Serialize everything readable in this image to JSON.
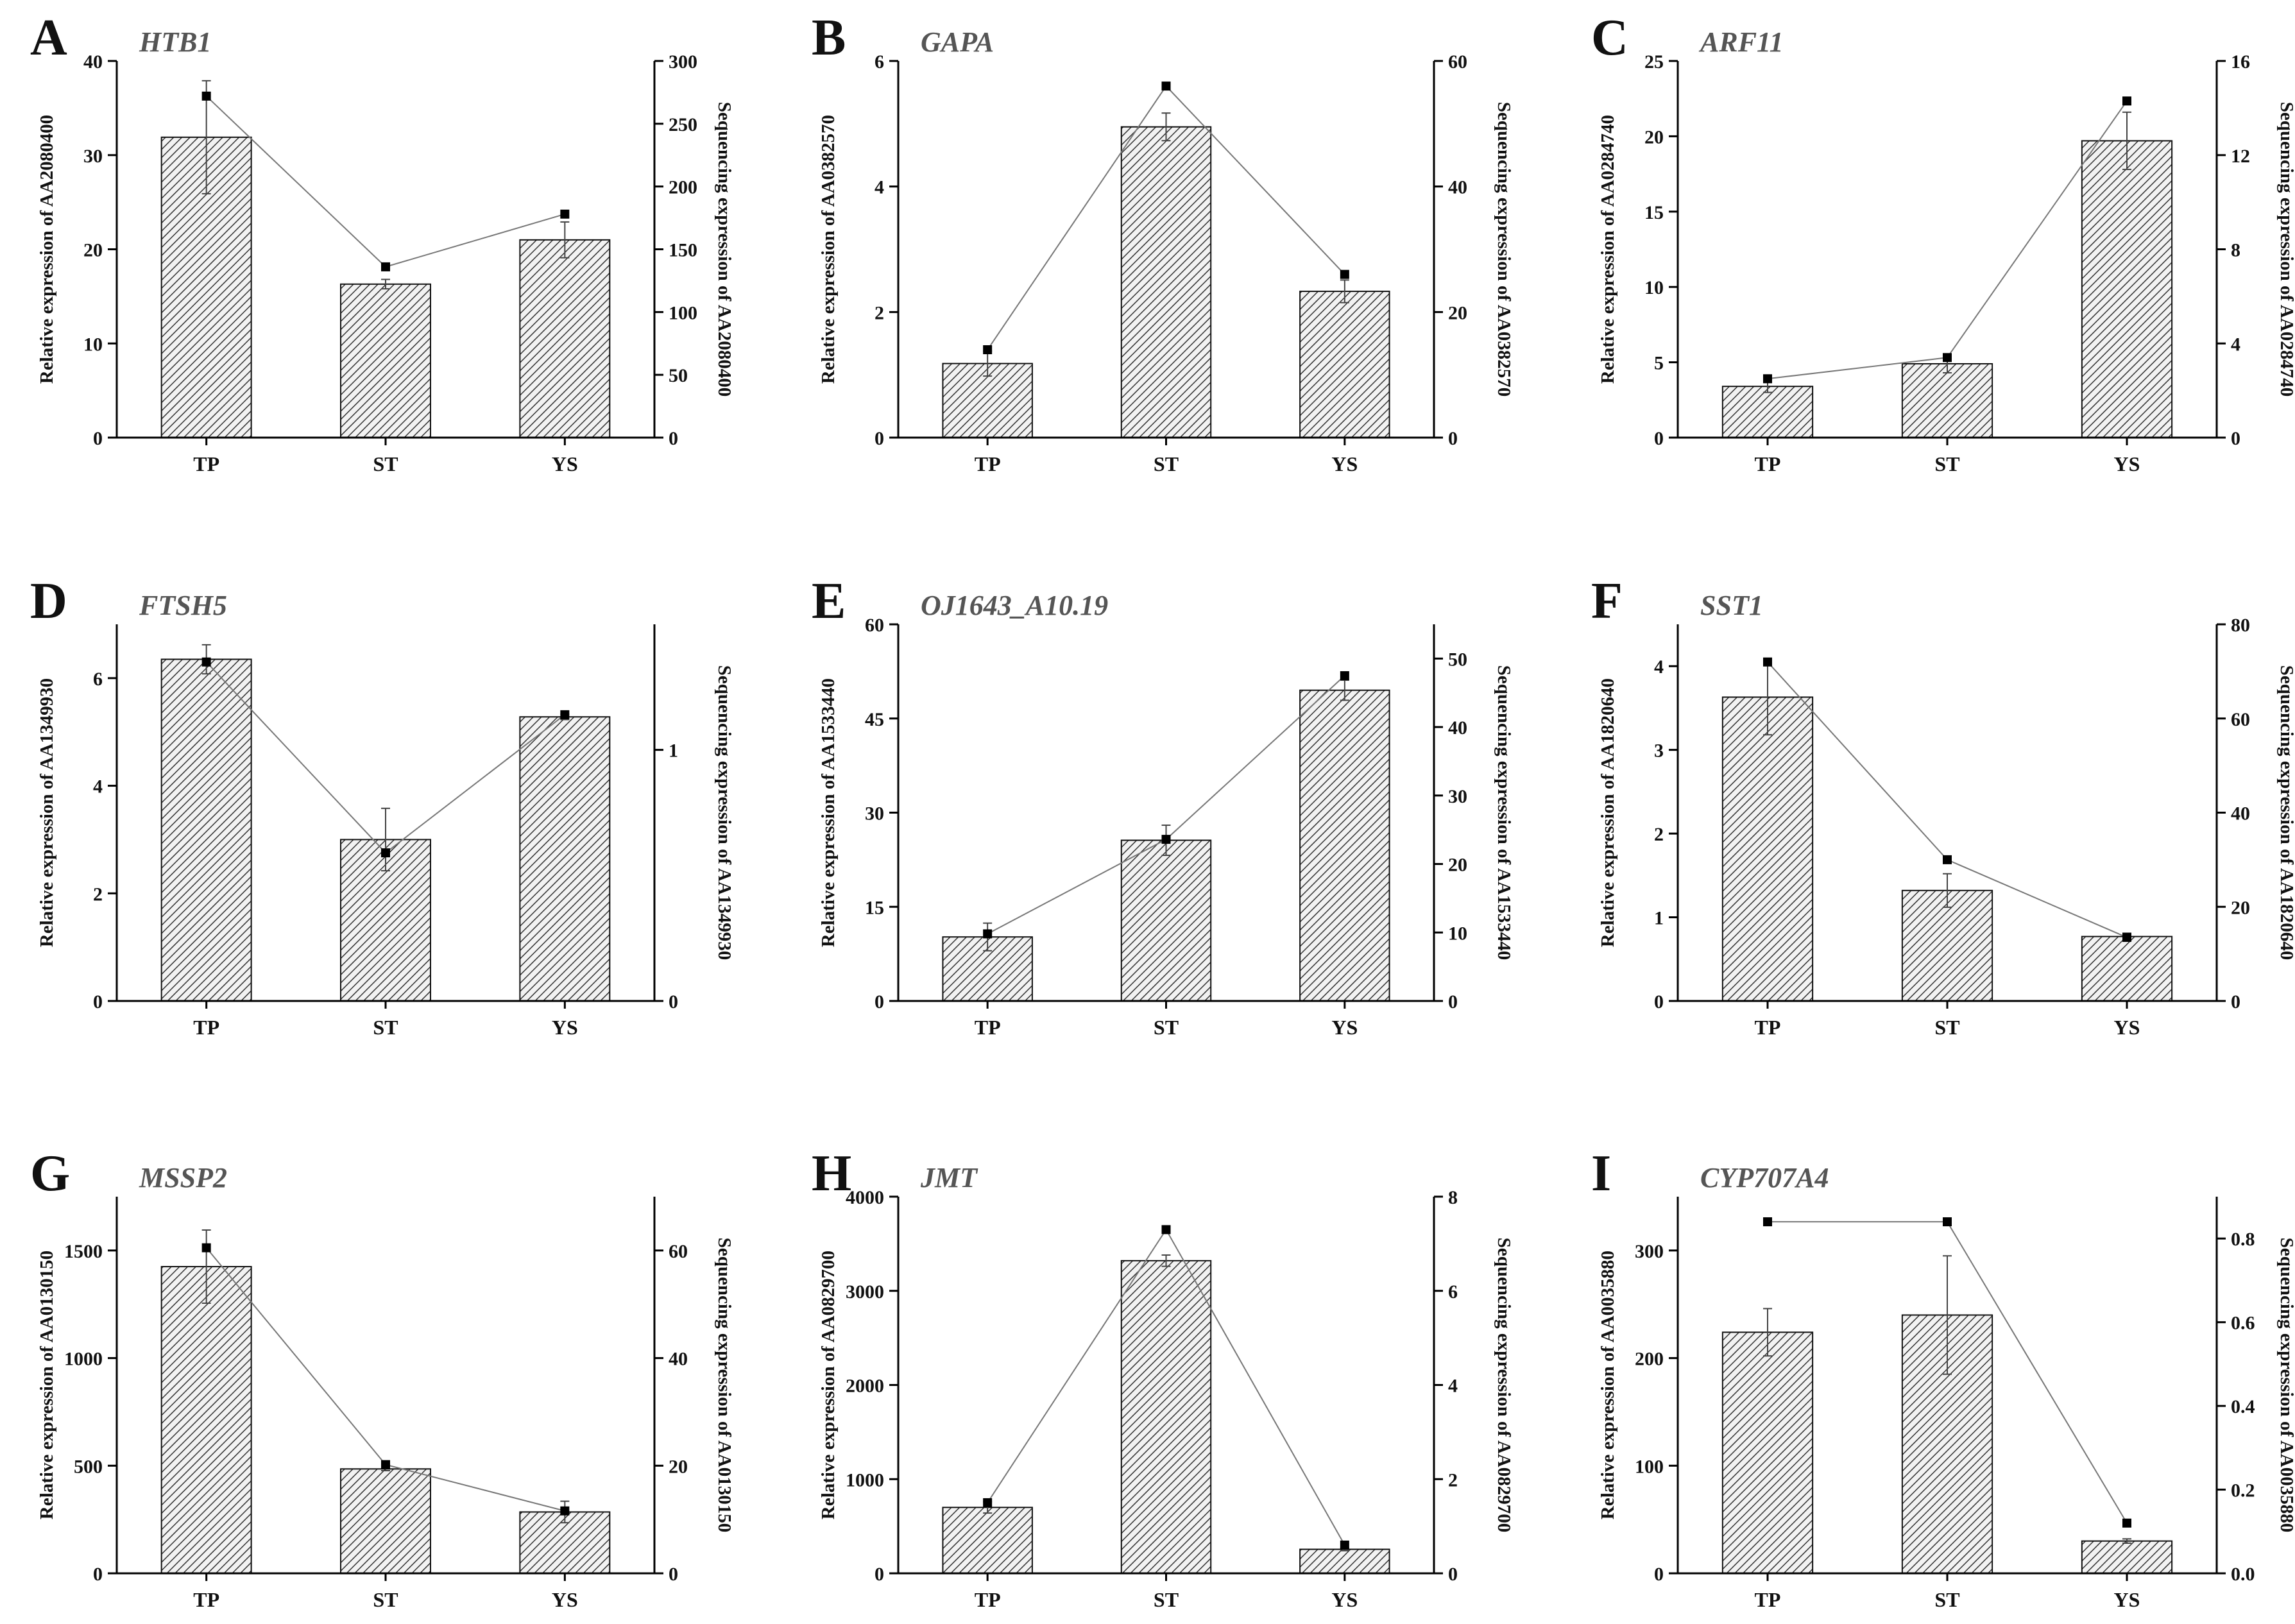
{
  "chart_data": [
    {
      "panel": "A",
      "gene": "HTB1",
      "type": "bar+line",
      "categories": [
        "TP",
        "ST",
        "YS"
      ],
      "left_axis": {
        "label": "Relative expression of AA2080400",
        "ylim": [
          0,
          40
        ],
        "ticks": [
          0,
          10,
          20,
          30,
          40
        ]
      },
      "right_axis": {
        "label": "Sequencing expression of AA2080400",
        "ylim": [
          0,
          300
        ],
        "ticks": [
          0,
          50,
          100,
          150,
          200,
          250,
          300
        ]
      },
      "series": [
        {
          "name": "Relative expression",
          "type": "bar",
          "axis": "left",
          "values": [
            31.9,
            16.3,
            21.0
          ],
          "errors": [
            6.0,
            0.5,
            1.9
          ]
        },
        {
          "name": "Sequencing expression",
          "type": "line",
          "axis": "right",
          "values": [
            272,
            136,
            178
          ]
        }
      ]
    },
    {
      "panel": "B",
      "gene": "GAPA",
      "type": "bar+line",
      "categories": [
        "TP",
        "ST",
        "YS"
      ],
      "left_axis": {
        "label": "Relative expression of AA0382570",
        "ylim": [
          0,
          6
        ],
        "ticks": [
          0,
          2,
          4,
          6
        ]
      },
      "right_axis": {
        "label": "Sequencing expression of AA0382570",
        "ylim": [
          0,
          60
        ],
        "ticks": [
          0,
          20,
          40,
          60
        ]
      },
      "series": [
        {
          "name": "Relative expression",
          "type": "bar",
          "axis": "left",
          "values": [
            1.18,
            4.95,
            2.33
          ],
          "errors": [
            0.2,
            0.22,
            0.18
          ]
        },
        {
          "name": "Sequencing expression",
          "type": "line",
          "axis": "right",
          "values": [
            14,
            56,
            26
          ]
        }
      ]
    },
    {
      "panel": "C",
      "gene": "ARF11",
      "type": "bar+line",
      "categories": [
        "TP",
        "ST",
        "YS"
      ],
      "left_axis": {
        "label": "Relative expression of AA0284740",
        "ylim": [
          0,
          25
        ],
        "ticks": [
          0,
          5,
          10,
          15,
          20,
          25
        ]
      },
      "right_axis": {
        "label": "Sequencing expression of AA0284740",
        "ylim": [
          0,
          16
        ],
        "ticks": [
          0,
          4,
          8,
          12,
          16
        ]
      },
      "series": [
        {
          "name": "Relative expression",
          "type": "bar",
          "axis": "left",
          "values": [
            3.4,
            4.9,
            19.7
          ],
          "errors": [
            0.4,
            0.6,
            1.9
          ]
        },
        {
          "name": "Sequencing expression",
          "type": "line",
          "axis": "right",
          "values": [
            2.5,
            3.4,
            14.3
          ]
        }
      ]
    },
    {
      "panel": "D",
      "gene": "FTSH5",
      "type": "bar+line",
      "categories": [
        "TP",
        "ST",
        "YS"
      ],
      "left_axis": {
        "label": "Relative expression of AA1349930",
        "ylim": [
          0,
          7
        ],
        "ticks": [
          0,
          2,
          4,
          6
        ]
      },
      "right_axis": {
        "label": "Sequencing expression of AA1349930",
        "ylim": [
          0,
          1.5
        ],
        "ticks": [
          0,
          1
        ]
      },
      "series": [
        {
          "name": "Relative expression",
          "type": "bar",
          "axis": "left",
          "values": [
            6.35,
            3.0,
            5.28
          ],
          "errors": [
            0.27,
            0.58,
            0.05
          ]
        },
        {
          "name": "Sequencing expression",
          "type": "line",
          "axis": "right",
          "values": [
            1.35,
            0.59,
            1.14
          ]
        }
      ]
    },
    {
      "panel": "E",
      "gene": "OJ1643_A10.19",
      "type": "bar+line",
      "categories": [
        "TP",
        "ST",
        "YS"
      ],
      "left_axis": {
        "label": "Relative expression of AA1533440",
        "ylim": [
          0,
          60
        ],
        "ticks": [
          0,
          15,
          30,
          45,
          60
        ]
      },
      "right_axis": {
        "label": "Sequencing expression of AA1533440",
        "ylim": [
          0,
          55
        ],
        "ticks": [
          0,
          10,
          20,
          30,
          40,
          50
        ]
      },
      "series": [
        {
          "name": "Relative expression",
          "type": "bar",
          "axis": "left",
          "values": [
            10.2,
            25.6,
            49.5
          ],
          "errors": [
            2.2,
            2.4,
            1.6
          ]
        },
        {
          "name": "Sequencing expression",
          "type": "line",
          "axis": "right",
          "values": [
            9.8,
            23.6,
            47.5
          ]
        }
      ]
    },
    {
      "panel": "F",
      "gene": "SST1",
      "type": "bar+line",
      "categories": [
        "TP",
        "ST",
        "YS"
      ],
      "left_axis": {
        "label": "Relative expression of AA1820640",
        "ylim": [
          0,
          4.5
        ],
        "ticks": [
          0,
          1,
          2,
          3,
          4
        ]
      },
      "right_axis": {
        "label": "Sequencing expression of AA1820640",
        "ylim": [
          0,
          80
        ],
        "ticks": [
          0,
          20,
          40,
          60,
          80
        ]
      },
      "series": [
        {
          "name": "Relative expression",
          "type": "bar",
          "axis": "left",
          "values": [
            3.63,
            1.32,
            0.77
          ],
          "errors": [
            0.45,
            0.2,
            0.04
          ]
        },
        {
          "name": "Sequencing expression",
          "type": "line",
          "axis": "right",
          "values": [
            72,
            30,
            13.5
          ]
        }
      ]
    },
    {
      "panel": "G",
      "gene": "MSSP2",
      "type": "bar+line",
      "categories": [
        "TP",
        "ST",
        "YS"
      ],
      "left_axis": {
        "label": "Relative expression of AA0130150",
        "ylim": [
          0,
          1750
        ],
        "ticks": [
          0,
          500,
          1000,
          1500
        ]
      },
      "right_axis": {
        "label": "Sequencing expression of AA0130150",
        "ylim": [
          0,
          70
        ],
        "ticks": [
          0,
          20,
          40,
          60
        ]
      },
      "series": [
        {
          "name": "Relative expression",
          "type": "bar",
          "axis": "left",
          "values": [
            1425,
            485,
            285
          ],
          "errors": [
            170,
            8,
            50
          ]
        },
        {
          "name": "Sequencing expression",
          "type": "line",
          "axis": "right",
          "values": [
            60.5,
            20.2,
            11.6
          ]
        }
      ]
    },
    {
      "panel": "H",
      "gene": "JMT",
      "type": "bar+line",
      "categories": [
        "TP",
        "ST",
        "YS"
      ],
      "left_axis": {
        "label": "Relative expression of AA0829700",
        "ylim": [
          0,
          4000
        ],
        "ticks": [
          0,
          1000,
          2000,
          3000,
          4000
        ]
      },
      "right_axis": {
        "label": "Sequencing expression of AA0829700",
        "ylim": [
          0,
          8
        ],
        "ticks": [
          0,
          2,
          4,
          6,
          8
        ]
      },
      "series": [
        {
          "name": "Relative expression",
          "type": "bar",
          "axis": "left",
          "values": [
            700,
            3320,
            255
          ],
          "errors": [
            60,
            60,
            15
          ]
        },
        {
          "name": "Sequencing expression",
          "type": "line",
          "axis": "right",
          "values": [
            1.5,
            7.3,
            0.6
          ]
        }
      ]
    },
    {
      "panel": "I",
      "gene": "CYP707A4",
      "type": "bar+line",
      "categories": [
        "TP",
        "ST",
        "YS"
      ],
      "left_axis": {
        "label": "Relative expression of AA0035880",
        "ylim": [
          0,
          350
        ],
        "ticks": [
          0,
          100,
          200,
          300
        ]
      },
      "right_axis": {
        "label": "Sequencing expression of AA0035880",
        "ylim": [
          0,
          0.9
        ],
        "ticks": [
          0.0,
          0.2,
          0.4,
          0.6,
          0.8
        ]
      },
      "series": [
        {
          "name": "Relative expression",
          "type": "bar",
          "axis": "left",
          "values": [
            224,
            240,
            30
          ],
          "errors": [
            22,
            55,
            2
          ]
        },
        {
          "name": "Sequencing expression",
          "type": "line",
          "axis": "right",
          "values": [
            0.84,
            0.84,
            0.12
          ]
        }
      ]
    }
  ]
}
